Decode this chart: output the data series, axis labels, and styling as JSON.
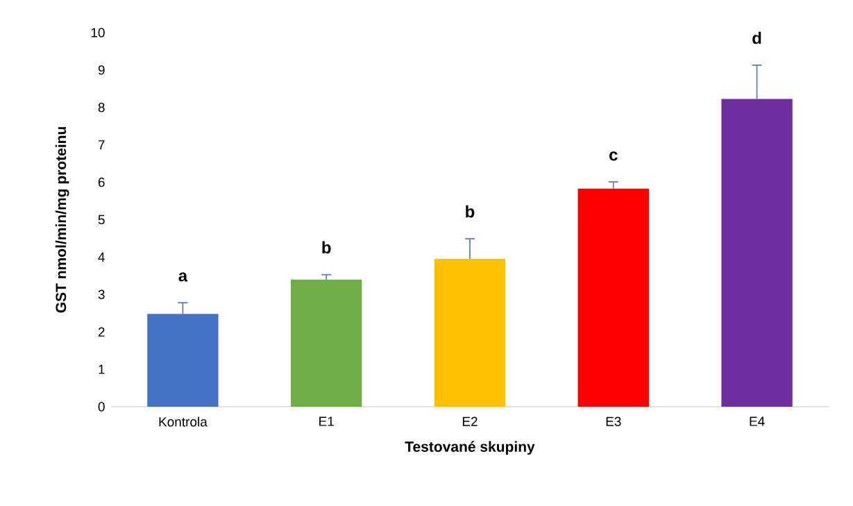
{
  "chart_data": {
    "type": "bar",
    "xlabel": "Testované skupiny",
    "ylabel": "GST nmol/min/mg proteinu",
    "categories": [
      "Kontrola",
      "E1",
      "E2",
      "E3",
      "E4"
    ],
    "values": [
      2.48,
      3.4,
      3.95,
      5.83,
      8.23
    ],
    "errors": [
      0.3,
      0.13,
      0.54,
      0.18,
      0.9
    ],
    "colors": [
      "#4472c4",
      "#70ad47",
      "#ffc000",
      "#ff0000",
      "#7030a0"
    ],
    "ylim": [
      0,
      10
    ],
    "yticks": [
      0,
      1,
      2,
      3,
      4,
      5,
      6,
      7,
      8,
      9,
      10
    ],
    "grid": false,
    "annotations": [
      "a",
      "b",
      "b",
      "c",
      "d"
    ]
  }
}
